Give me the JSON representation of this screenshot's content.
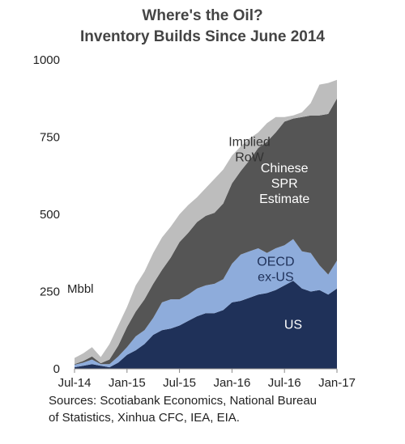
{
  "chart_data": {
    "type": "area",
    "stacked": true,
    "title_lines": [
      "Where's the Oil?",
      "Inventory Builds Since June 2014"
    ],
    "ylabel": "Mbbl",
    "ylim": [
      0,
      1000
    ],
    "y_ticks": [
      0,
      250,
      500,
      750,
      1000
    ],
    "x_start": "2014-07",
    "x_end": "2017-01",
    "x_ticks": [
      "Jul-14",
      "Jan-15",
      "Jul-15",
      "Jan-16",
      "Jul-16",
      "Jan-17"
    ],
    "x": [
      "Jul-14",
      "Aug-14",
      "Sep-14",
      "Oct-14",
      "Nov-14",
      "Dec-14",
      "Jan-15",
      "Feb-15",
      "Mar-15",
      "Apr-15",
      "May-15",
      "Jun-15",
      "Jul-15",
      "Aug-15",
      "Sep-15",
      "Oct-15",
      "Nov-15",
      "Dec-15",
      "Jan-16",
      "Feb-16",
      "Mar-16",
      "Apr-16",
      "May-16",
      "Jun-16",
      "Jul-16",
      "Aug-16",
      "Sep-16",
      "Oct-16",
      "Nov-16",
      "Dec-16",
      "Jan-17"
    ],
    "grid": false,
    "legend": "labels on areas",
    "series": [
      {
        "name": "US",
        "color": "#1f3159",
        "values": [
          5,
          10,
          15,
          10,
          5,
          20,
          45,
          60,
          80,
          110,
          125,
          130,
          140,
          155,
          170,
          180,
          180,
          190,
          215,
          220,
          230,
          240,
          245,
          255,
          270,
          285,
          260,
          250,
          255,
          240,
          260
        ]
      },
      {
        "name": "OECD ex-US",
        "color": "#8eacdb",
        "values": [
          8,
          10,
          15,
          5,
          10,
          20,
          25,
          45,
          45,
          55,
          90,
          95,
          85,
          85,
          90,
          90,
          95,
          100,
          125,
          150,
          150,
          150,
          130,
          135,
          130,
          135,
          120,
          125,
          80,
          65,
          90
        ]
      },
      {
        "name": "Chinese SPR Estimate",
        "color": "#555555",
        "values": [
          2,
          5,
          10,
          3,
          15,
          35,
          65,
          80,
          100,
          110,
          105,
          135,
          185,
          200,
          215,
          225,
          230,
          245,
          260,
          270,
          295,
          325,
          360,
          375,
          400,
          390,
          435,
          445,
          485,
          520,
          525
        ]
      },
      {
        "name": "Implied RoW",
        "color": "#bdbdbd",
        "values": [
          20,
          25,
          30,
          20,
          50,
          65,
          65,
          85,
          90,
          100,
          105,
          100,
          90,
          90,
          80,
          90,
          110,
          110,
          90,
          80,
          70,
          50,
          60,
          50,
          15,
          10,
          15,
          40,
          100,
          100,
          60
        ]
      }
    ],
    "annotations": [
      {
        "lines": [
          "Implied",
          "RoW"
        ],
        "series": "Implied RoW"
      },
      {
        "lines": [
          "Chinese",
          "SPR",
          "Estimate"
        ],
        "series": "Chinese SPR Estimate"
      },
      {
        "lines": [
          "OECD",
          "ex-US"
        ],
        "series": "OECD ex-US"
      },
      {
        "lines": [
          "US"
        ],
        "series": "US"
      }
    ]
  },
  "source_lines": [
    "Sources: Scotiabank Economics, National Bureau",
    "of Statistics, Xinhua CFC, IEA, EIA."
  ]
}
